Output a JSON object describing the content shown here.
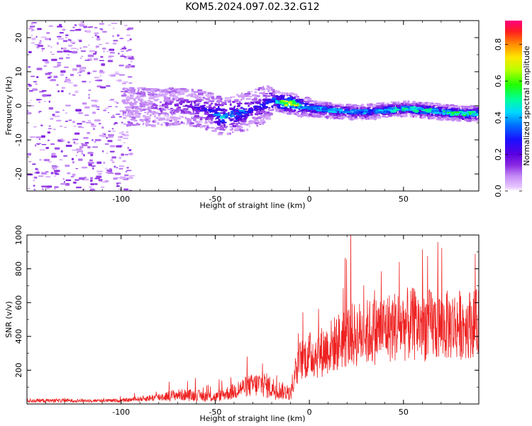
{
  "title": "KOM5.2024.097.02.32.G12",
  "colors": {
    "snr_line": "#ee2222"
  },
  "chart_data": [
    {
      "type": "heatmap",
      "xlabel": "Height of straight line (km)",
      "ylabel": "Frequency (Hz)",
      "xlim": [
        -150,
        90
      ],
      "ylim": [
        -25,
        25
      ],
      "x_ticks": [
        -100,
        -50,
        0,
        50
      ],
      "y_ticks": [
        -20,
        -10,
        0,
        10,
        20
      ],
      "colorbar": {
        "label": "Normalized spectral amplitude",
        "range": [
          0.0,
          0.93
        ],
        "ticks": [
          "0.0",
          "0.2",
          "0.4",
          "0.6",
          "0.8"
        ],
        "tick_values": [
          0.0,
          0.2,
          0.4,
          0.6,
          0.8
        ]
      },
      "ridge": {
        "x": [
          -95,
          -80,
          -65,
          -55,
          -47,
          -40,
          -32,
          -25,
          -20,
          -15,
          -10,
          -5,
          0,
          10,
          20,
          30,
          40,
          50,
          60,
          70,
          80,
          88
        ],
        "frequency": [
          0,
          0,
          0,
          -1,
          -3,
          -2,
          -1,
          0.5,
          2,
          1,
          1,
          0,
          -0.5,
          -1,
          -1.5,
          -1.5,
          -1,
          -0.5,
          -1,
          -1.5,
          -2,
          -2
        ],
        "amplitude": [
          0.1,
          0.15,
          0.2,
          0.25,
          0.4,
          0.35,
          0.25,
          0.25,
          0.3,
          0.65,
          0.7,
          0.4,
          0.35,
          0.4,
          0.35,
          0.35,
          0.4,
          0.45,
          0.45,
          0.45,
          0.5,
          0.5
        ]
      }
    },
    {
      "type": "line",
      "xlabel": "Height of straight line (km)",
      "ylabel": "SNR (v/v)",
      "xlim": [
        -150,
        90
      ],
      "ylim": [
        0,
        1000
      ],
      "x_ticks": [
        -100,
        -50,
        0,
        50
      ],
      "y_ticks": [
        200,
        400,
        600,
        800,
        1000
      ],
      "series": [
        {
          "envelope_x": [
            -150,
            -120,
            -100,
            -90,
            -80,
            -70,
            -60,
            -50,
            -45,
            -40,
            -35,
            -30,
            -25,
            -20,
            -15,
            -10,
            -5,
            0,
            5,
            10,
            20,
            30,
            40,
            50,
            60,
            70,
            80,
            90
          ],
          "envelope_mean": [
            20,
            20,
            20,
            30,
            40,
            55,
            50,
            40,
            60,
            75,
            100,
            110,
            120,
            95,
            80,
            60,
            260,
            290,
            300,
            330,
            400,
            420,
            450,
            470,
            470,
            460,
            470,
            480
          ],
          "envelope_amp": [
            12,
            10,
            10,
            15,
            25,
            35,
            35,
            30,
            40,
            50,
            60,
            70,
            80,
            70,
            55,
            40,
            120,
            140,
            150,
            160,
            190,
            200,
            210,
            220,
            220,
            210,
            210,
            200
          ]
        }
      ]
    }
  ]
}
